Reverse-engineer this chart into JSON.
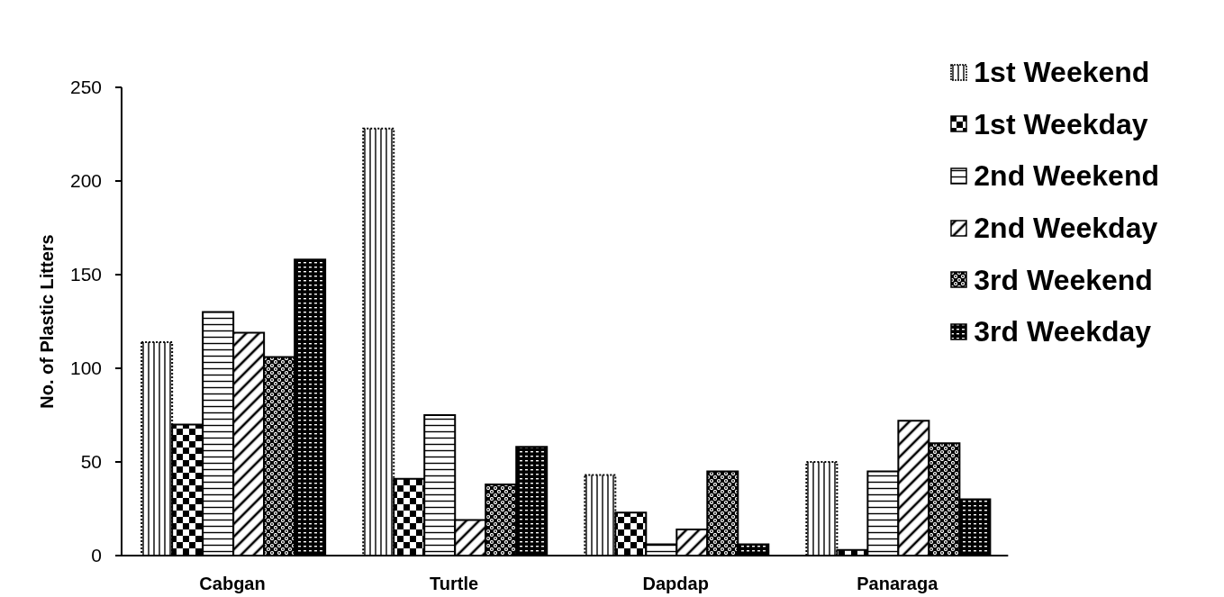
{
  "chart_data": {
    "type": "bar",
    "ylabel": "No. of Plastic Litters",
    "categories": [
      "Cabgan",
      "Turtle",
      "Dapdap",
      "Panaraga"
    ],
    "series": [
      {
        "name": "1st Weekend",
        "color": "#000000",
        "values": [
          114,
          228,
          43,
          50
        ]
      },
      {
        "name": "1st Weekday",
        "color": "#000000",
        "values": [
          70,
          41,
          23,
          3
        ]
      },
      {
        "name": "2nd Weekend",
        "color": "#000000",
        "values": [
          130,
          75,
          6,
          45
        ]
      },
      {
        "name": "2nd Weekday",
        "color": "#000000",
        "values": [
          119,
          19,
          14,
          72
        ]
      },
      {
        "name": "3rd Weekend",
        "color": "#000000",
        "values": [
          106,
          38,
          45,
          60
        ]
      },
      {
        "name": "3rd Weekday",
        "color": "#000000",
        "values": [
          158,
          58,
          6,
          30
        ]
      }
    ],
    "ylim": [
      0,
      250
    ],
    "yticks": [
      0,
      50,
      100,
      150,
      200,
      250
    ],
    "legend": "top right"
  }
}
